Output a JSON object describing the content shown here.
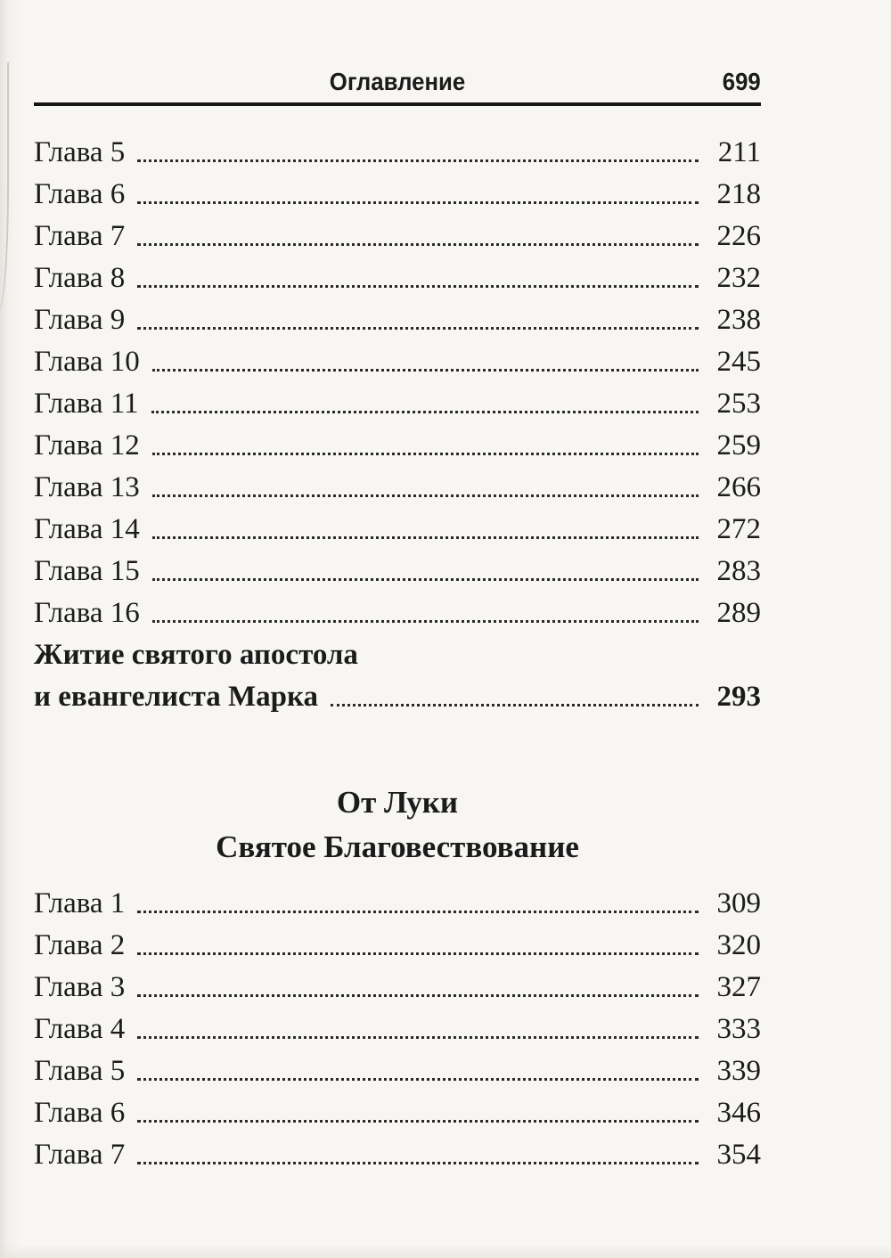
{
  "header": {
    "title": "Оглавление",
    "page_number": "699"
  },
  "section_1": {
    "entries": [
      {
        "label": "Глава 5",
        "page": "211"
      },
      {
        "label": "Глава 6",
        "page": "218"
      },
      {
        "label": "Глава 7",
        "page": "226"
      },
      {
        "label": "Глава 8",
        "page": "232"
      },
      {
        "label": "Глава 9",
        "page": "238"
      },
      {
        "label": "Глава 10",
        "page": "245"
      },
      {
        "label": "Глава 11",
        "page": "253"
      },
      {
        "label": "Глава 12",
        "page": "259"
      },
      {
        "label": "Глава 13",
        "page": "266"
      },
      {
        "label": "Глава 14",
        "page": "272"
      },
      {
        "label": "Глава 15",
        "page": "283"
      },
      {
        "label": "Глава 16",
        "page": "289"
      }
    ]
  },
  "life_entry": {
    "line1": "Житие святого апостола",
    "line2": "и евангелиста Марка",
    "page": "293"
  },
  "section_2": {
    "heading_line1": "От Луки",
    "heading_line2": "Святое Благовествование",
    "entries": [
      {
        "label": "Глава 1",
        "page": "309"
      },
      {
        "label": "Глава 2",
        "page": "320"
      },
      {
        "label": "Глава 3",
        "page": "327"
      },
      {
        "label": "Глава 4",
        "page": "333"
      },
      {
        "label": "Глава 5",
        "page": "339"
      },
      {
        "label": "Глава 6",
        "page": "346"
      },
      {
        "label": "Глава 7",
        "page": "354"
      }
    ]
  }
}
